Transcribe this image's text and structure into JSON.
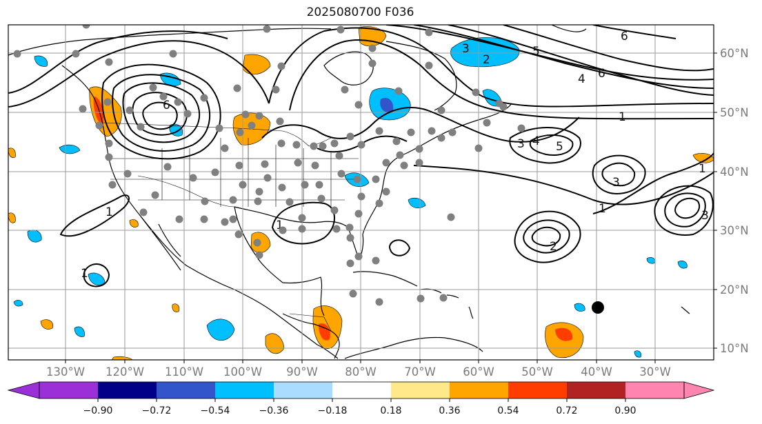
{
  "title": "2025080700 F036",
  "longitude_labels": [
    "130°W",
    "120°W",
    "110°W",
    "100°W",
    "90°W",
    "80°W",
    "70°W",
    "60°W",
    "50°W",
    "40°W",
    "30°W"
  ],
  "latitude_labels": [
    "60°N",
    "50°N",
    "40°N",
    "30°N",
    "20°N",
    "10°N"
  ],
  "colorbar": {
    "tick_labels": [
      "−0.90",
      "−0.72",
      "−0.54",
      "−0.36",
      "−0.18",
      "0.18",
      "0.36",
      "0.54",
      "0.72",
      "0.90"
    ],
    "colors": [
      "#9b30d9",
      "#000088",
      "#3355cc",
      "#00bfff",
      "#aadcff",
      "#ffffff",
      "#ffe88a",
      "#ffa500",
      "#ff3d00",
      "#b22222",
      "#ff85b0"
    ]
  },
  "contour_labels": [
    "1",
    "1",
    "1",
    "1",
    "1",
    "1",
    "2",
    "2",
    "3",
    "3",
    "3",
    "3",
    "4",
    "4",
    "5",
    "6",
    "6",
    "6",
    "5"
  ],
  "feature_colors": {
    "negative_anomaly": "#00bfff",
    "positive_anomaly": "#ffa500",
    "station_dot": "#808080",
    "storm_marker": "#000000"
  }
}
